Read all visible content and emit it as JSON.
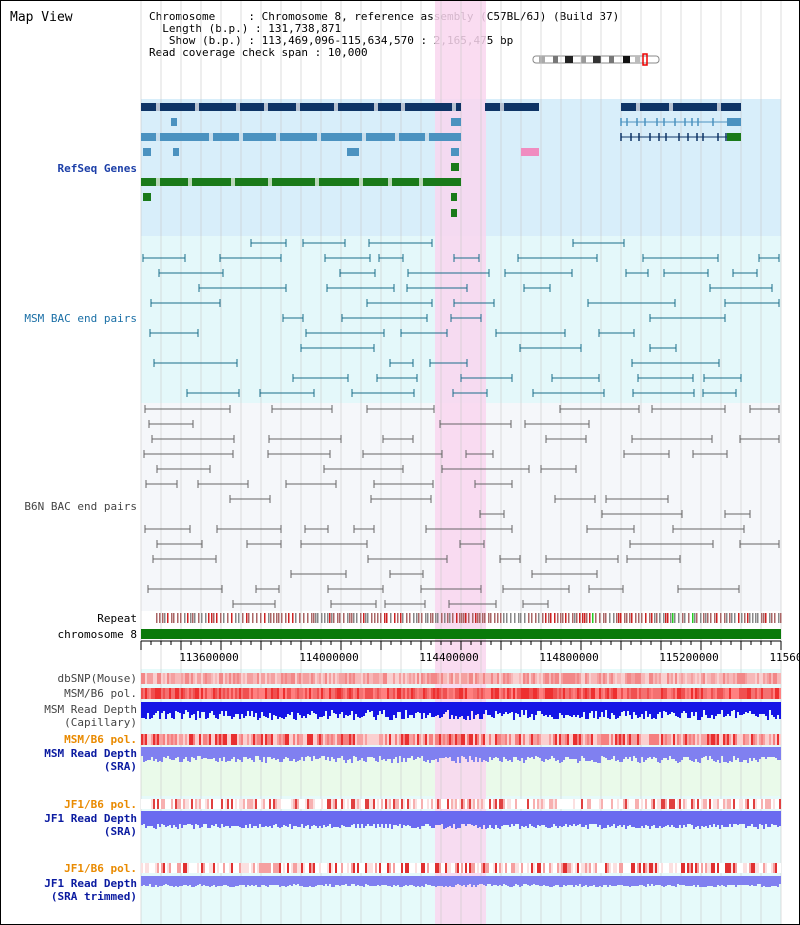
{
  "title": "Map View",
  "header": {
    "chromosome_label": "Chromosome",
    "chromosome_value": "Chromosome 8, reference assembly (C57BL/6J) (Build 37)",
    "length_label": "Length (b.p.)",
    "length_value": "131,738,871",
    "show_label": "Show (b.p.)",
    "show_value": "113,469,096-115,634,570 : 2,165,475 bp",
    "coverage_label": "Read coverage check span",
    "coverage_value": "10,000"
  },
  "tracks": {
    "refseq": "RefSeq Genes",
    "msm_bac": "MSM BAC end pairs",
    "b6n_bac": "B6N BAC end pairs",
    "repeat": "Repeat",
    "chromosome": "chromosome 8",
    "dbsnp": "dbSNP(Mouse)",
    "msm_b6_pol": "MSM/B6 pol.",
    "msm_depth_cap_1": "MSM Read Depth",
    "msm_depth_cap_2": "(Capillary)",
    "msm_b6_pol2": "MSM/B6 pol.",
    "msm_depth_sra_1": "MSM Read Depth",
    "msm_depth_sra_2": "(SRA)",
    "jf1_pol": "JF1/B6 pol.",
    "jf1_depth_1": "JF1 Read Depth",
    "jf1_depth_2": "(SRA)",
    "jf1_pol2": "JF1/B6 pol.",
    "jf1_trim_1": "JF1 Read Depth",
    "jf1_trim_2": "(SRA trimmed)"
  },
  "axis": {
    "ticks": [
      "113600000",
      "114000000",
      "114400000",
      "114800000",
      "115200000",
      "11560"
    ]
  },
  "colors": {
    "refseq_dark": "#0e3466",
    "refseq_mid": "#4b92c0",
    "refseq_green": "#1a7a1a",
    "highlight": "#f9d6ef",
    "depth_blue": "#1515e6",
    "depth_light": "#8080f0"
  }
}
